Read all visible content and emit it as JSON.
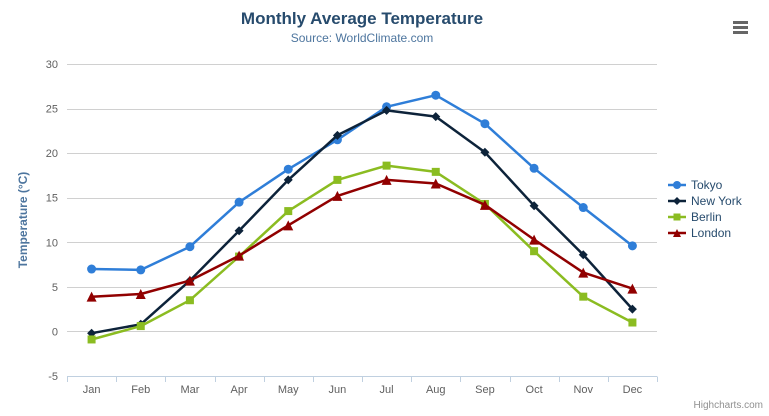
{
  "header": {
    "title": "Monthly Average Temperature",
    "subtitle": "Source: WorldClimate.com"
  },
  "footer": {
    "credits": "Highcharts.com"
  },
  "export_menu": {
    "icon": "hamburger-icon"
  },
  "chart_data": {
    "type": "line",
    "title": "Monthly Average Temperature",
    "subtitle": "Source: WorldClimate.com",
    "xlabel": "",
    "ylabel": "Temperature (°C)",
    "ylim": [
      -5,
      30
    ],
    "y_ticks": [
      -5,
      0,
      5,
      10,
      15,
      20,
      25,
      30
    ],
    "grid": true,
    "legend_position": "right",
    "categories": [
      "Jan",
      "Feb",
      "Mar",
      "Apr",
      "May",
      "Jun",
      "Jul",
      "Aug",
      "Sep",
      "Oct",
      "Nov",
      "Dec"
    ],
    "series": [
      {
        "name": "Tokyo",
        "color": "#2f7ed8",
        "marker": "circle",
        "values": [
          7.0,
          6.9,
          9.5,
          14.5,
          18.2,
          21.5,
          25.2,
          26.5,
          23.3,
          18.3,
          13.9,
          9.6
        ]
      },
      {
        "name": "New York",
        "color": "#0d233a",
        "marker": "diamond",
        "values": [
          -0.2,
          0.8,
          5.7,
          11.3,
          17.0,
          22.0,
          24.8,
          24.1,
          20.1,
          14.1,
          8.6,
          2.5
        ]
      },
      {
        "name": "Berlin",
        "color": "#8bbc21",
        "marker": "square",
        "values": [
          -0.9,
          0.6,
          3.5,
          8.4,
          13.5,
          17.0,
          18.6,
          17.9,
          14.3,
          9.0,
          3.9,
          1.0
        ]
      },
      {
        "name": "London",
        "color": "#910000",
        "marker": "triangle",
        "values": [
          3.9,
          4.2,
          5.7,
          8.5,
          11.9,
          15.2,
          17.0,
          16.6,
          14.2,
          10.3,
          6.6,
          4.8
        ]
      }
    ],
    "colors": {
      "title": "#274b6d",
      "subtitle": "#4d759e",
      "y_axis_title": "#4d759e",
      "axis_labels": "#606060",
      "grid_line": "#d0d0d0",
      "axis_line": "#c0d0e0",
      "legend_text": "#274b6d",
      "credits": "#909090",
      "menu_icon": "#666666"
    }
  }
}
